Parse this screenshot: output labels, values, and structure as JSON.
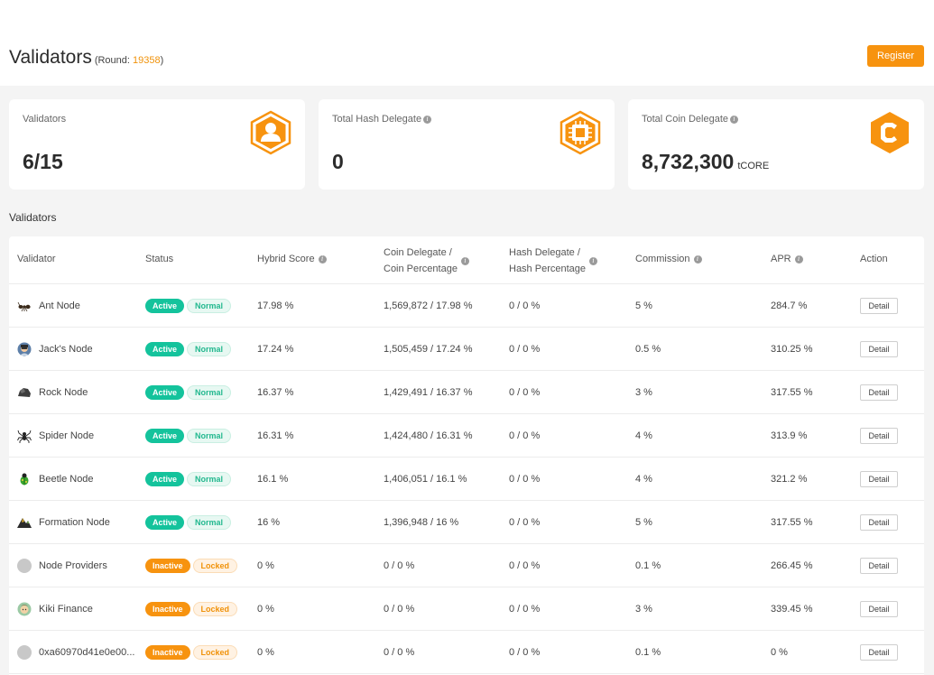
{
  "header": {
    "title": "Validators",
    "round_prefix": "(Round: ",
    "round_number": "19358",
    "round_suffix": ")",
    "register_label": "Register"
  },
  "cards": [
    {
      "label": "Validators",
      "value": "6/15",
      "unit": "",
      "icon": "user-hexagon-icon"
    },
    {
      "label": "Total Hash Delegate",
      "value": "0",
      "unit": "",
      "icon": "chip-hexagon-icon"
    },
    {
      "label": "Total Coin Delegate",
      "value": "8,732,300",
      "unit": "tCORE",
      "icon": "core-logo-icon"
    }
  ],
  "section_title": "Validators",
  "table": {
    "headers": {
      "validator": "Validator",
      "status": "Status",
      "hybrid_score": "Hybrid Score",
      "coin_delegate_1": "Coin Delegate /",
      "coin_delegate_2": "Coin Percentage",
      "hash_delegate_1": "Hash Delegate /",
      "hash_delegate_2": "Hash Percentage",
      "commission": "Commission",
      "apr": "APR",
      "action": "Action"
    },
    "rows": [
      {
        "name": "Ant Node",
        "avatar": "ant-icon",
        "status": "Active",
        "state": "Normal",
        "score": "17.98 %",
        "coin": "1,569,872 / 17.98 %",
        "hash": "0 / 0 %",
        "commission": "5 %",
        "apr": "284.7 %",
        "action": "Detail"
      },
      {
        "name": "Jack's Node",
        "avatar": "person-avatar-icon",
        "status": "Active",
        "state": "Normal",
        "score": "17.24 %",
        "coin": "1,505,459 / 17.24 %",
        "hash": "0 / 0 %",
        "commission": "0.5 %",
        "apr": "310.25 %",
        "action": "Detail"
      },
      {
        "name": "Rock Node",
        "avatar": "rock-icon",
        "status": "Active",
        "state": "Normal",
        "score": "16.37 %",
        "coin": "1,429,491 / 16.37 %",
        "hash": "0 / 0 %",
        "commission": "3 %",
        "apr": "317.55 %",
        "action": "Detail"
      },
      {
        "name": "Spider Node",
        "avatar": "spider-icon",
        "status": "Active",
        "state": "Normal",
        "score": "16.31 %",
        "coin": "1,424,480 / 16.31 %",
        "hash": "0 / 0 %",
        "commission": "4 %",
        "apr": "313.9 %",
        "action": "Detail"
      },
      {
        "name": "Beetle Node",
        "avatar": "beetle-icon",
        "status": "Active",
        "state": "Normal",
        "score": "16.1 %",
        "coin": "1,406,051 / 16.1 %",
        "hash": "0 / 0 %",
        "commission": "4 %",
        "apr": "321.2 %",
        "action": "Detail"
      },
      {
        "name": "Formation Node",
        "avatar": "mountain-icon",
        "status": "Active",
        "state": "Normal",
        "score": "16 %",
        "coin": "1,396,948 / 16 %",
        "hash": "0 / 0 %",
        "commission": "5 %",
        "apr": "317.55 %",
        "action": "Detail"
      },
      {
        "name": "Node Providers",
        "avatar": "placeholder-avatar-icon",
        "status": "Inactive",
        "state": "Locked",
        "score": "0 %",
        "coin": "0 / 0 %",
        "hash": "0 / 0 %",
        "commission": "0.1 %",
        "apr": "266.45 %",
        "action": "Detail"
      },
      {
        "name": "Kiki Finance",
        "avatar": "kiki-avatar-icon",
        "status": "Inactive",
        "state": "Locked",
        "score": "0 %",
        "coin": "0 / 0 %",
        "hash": "0 / 0 %",
        "commission": "3 %",
        "apr": "339.45 %",
        "action": "Detail"
      },
      {
        "name": "0xa60970d41e0e00...",
        "avatar": "placeholder-avatar-icon",
        "status": "Inactive",
        "state": "Locked",
        "score": "0 %",
        "coin": "0 / 0 %",
        "hash": "0 / 0 %",
        "commission": "0.1 %",
        "apr": "0 %",
        "action": "Detail"
      }
    ]
  },
  "colors": {
    "accent": "#f7930f",
    "active": "#14c39c",
    "normal_text": "#23b88f",
    "locked_text": "#f0920a"
  }
}
